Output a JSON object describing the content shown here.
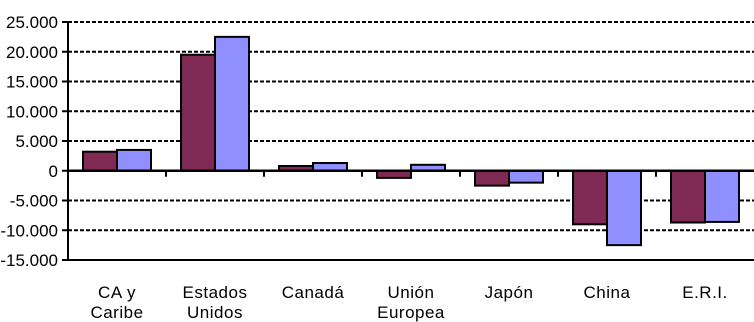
{
  "chart_data": {
    "type": "bar",
    "categories": [
      [
        "CA y",
        "Caribe"
      ],
      [
        "Estados",
        "Unidos"
      ],
      [
        "Canadá"
      ],
      [
        "Unión",
        "Europea"
      ],
      [
        "Japón"
      ],
      [
        "China"
      ],
      [
        "E.R.I."
      ]
    ],
    "series": [
      {
        "values": [
          3200,
          19500,
          800,
          -1200,
          -2500,
          -9000,
          -8700
        ],
        "color": "#7f2a55"
      },
      {
        "values": [
          3500,
          22500,
          1300,
          1000,
          -2000,
          -12500,
          -8600
        ],
        "color": "#8f8fff"
      }
    ],
    "yticks": [
      "25.000",
      "20.000",
      "15.000",
      "10.000",
      "5.000",
      "0",
      "-5.000",
      "-10.000",
      "-15.000"
    ],
    "ylim": [
      -15000,
      25000
    ],
    "grid": true,
    "legend": "none"
  }
}
